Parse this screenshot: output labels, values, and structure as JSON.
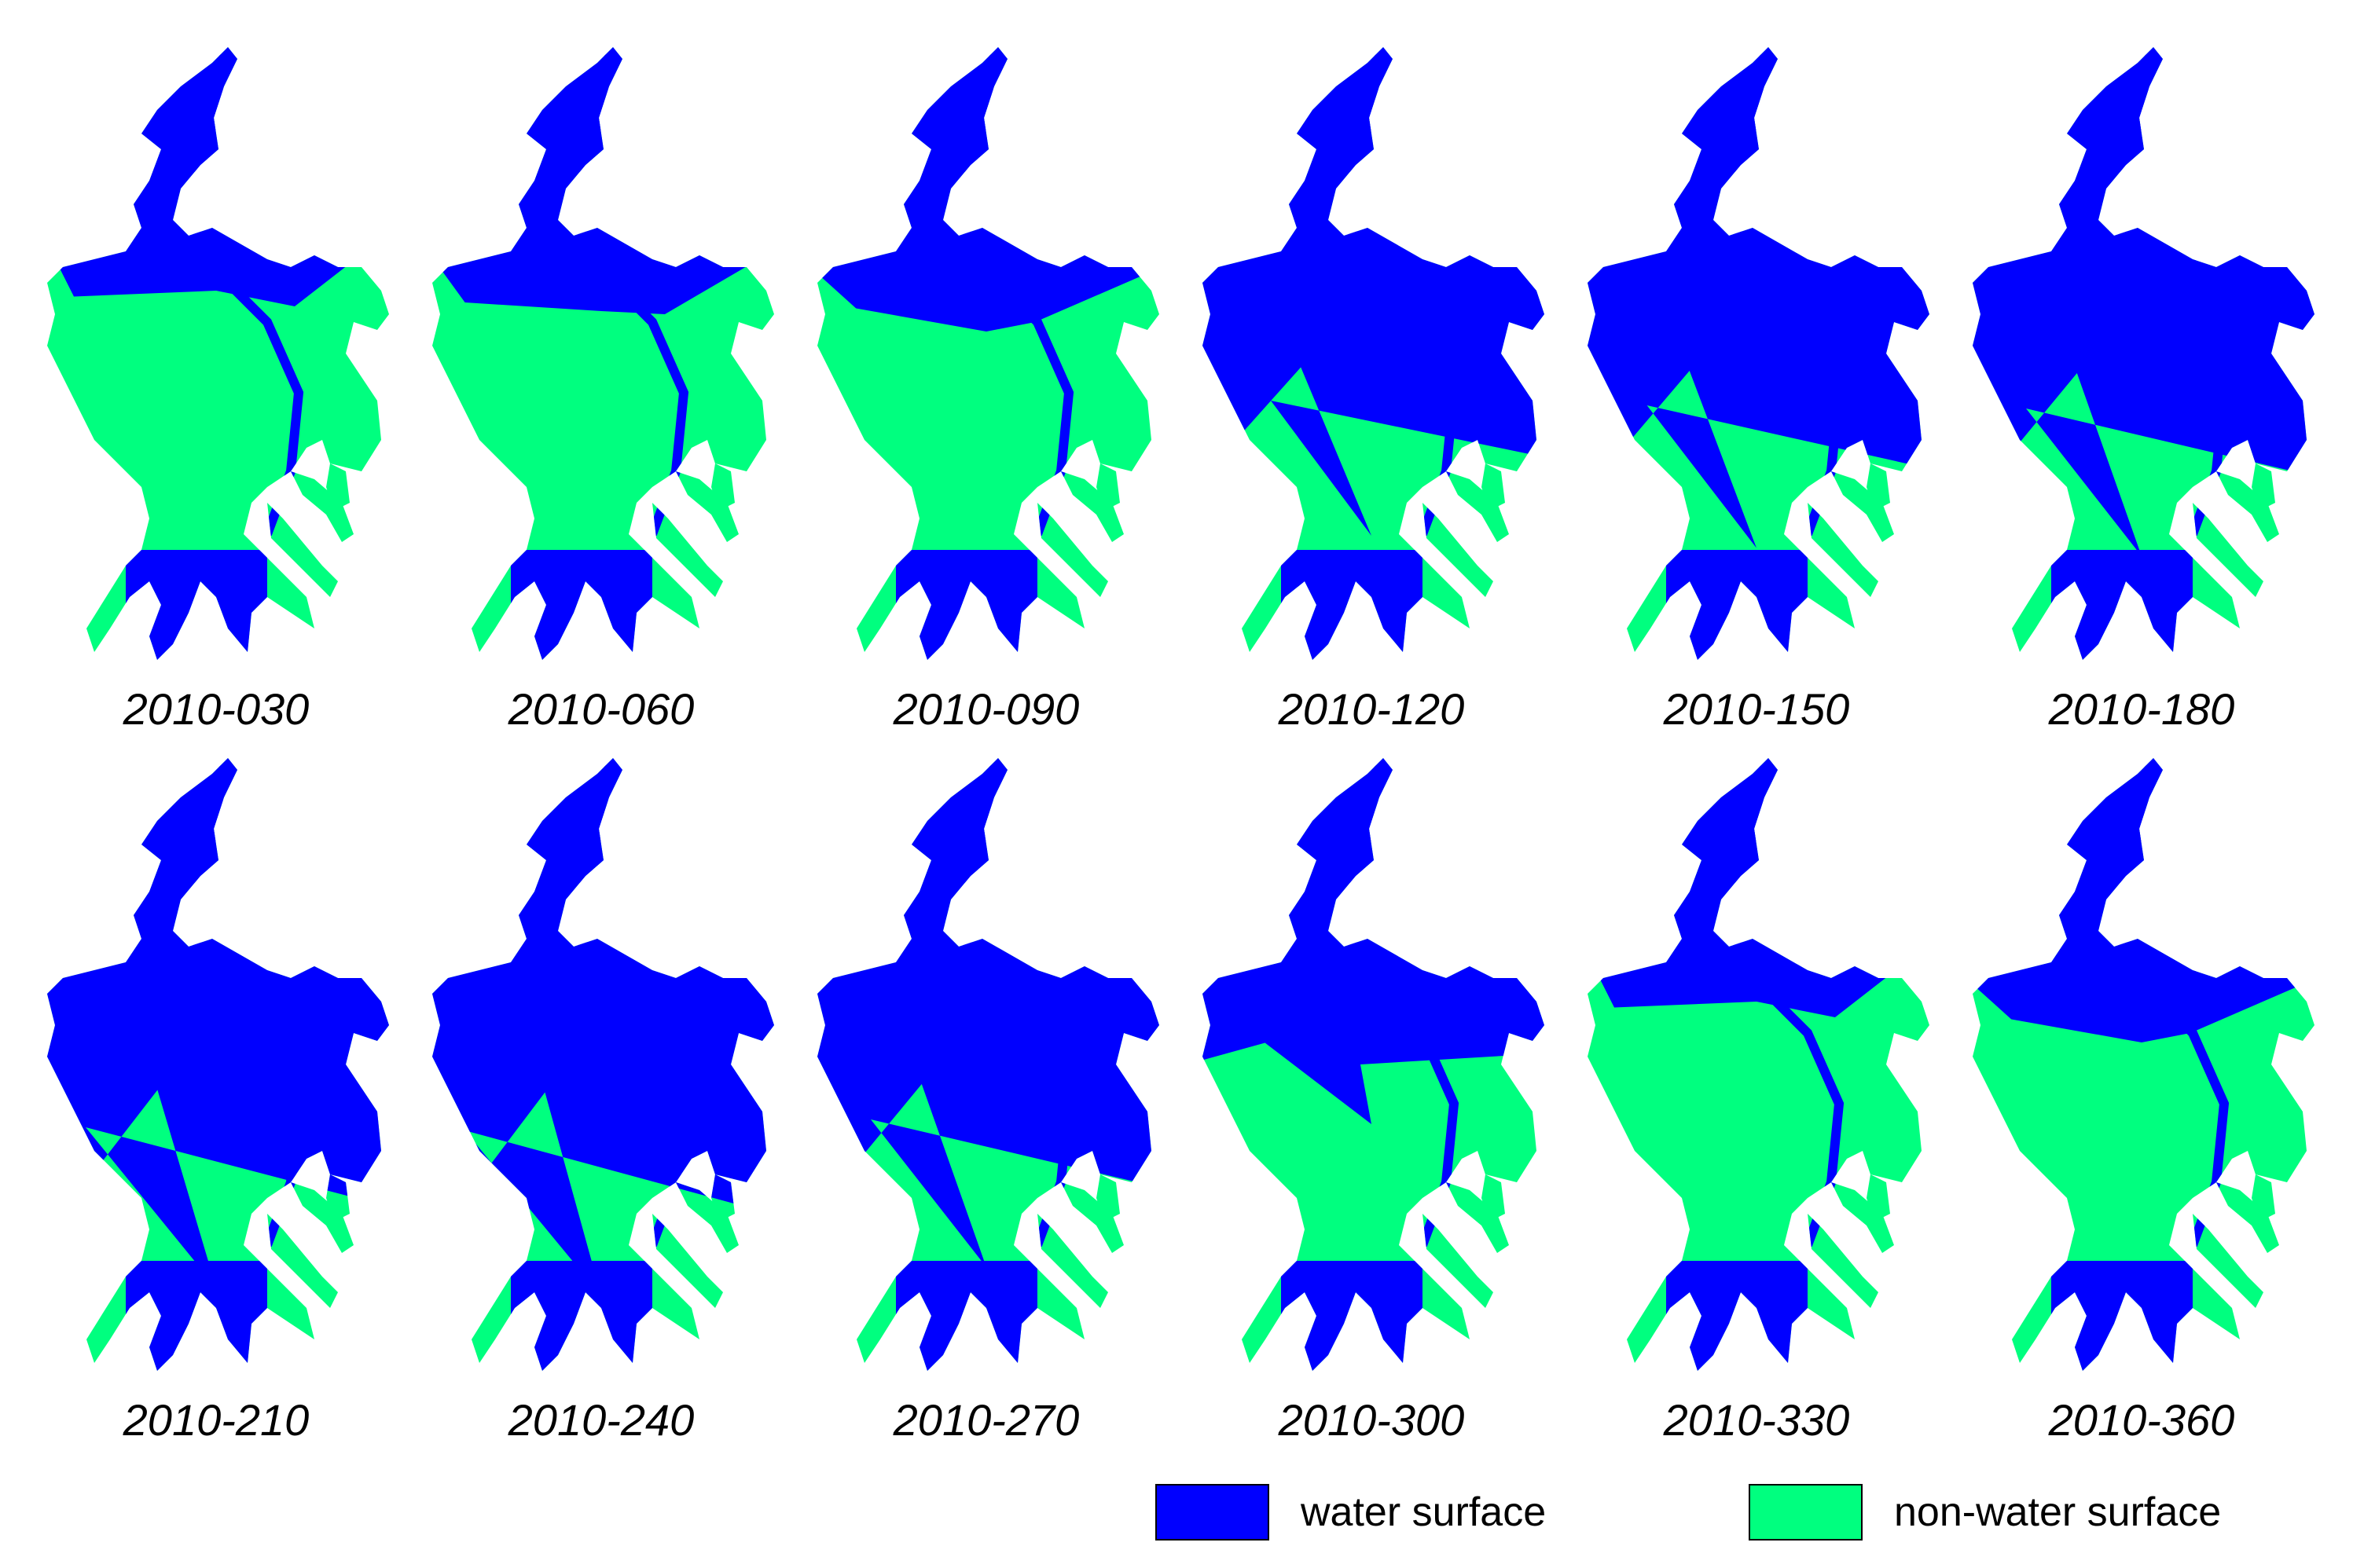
{
  "figure": {
    "panels": [
      {
        "label": "2010-030",
        "water_fraction": 0.25
      },
      {
        "label": "2010-060",
        "water_fraction": 0.3
      },
      {
        "label": "2010-090",
        "water_fraction": 0.35
      },
      {
        "label": "2010-120",
        "water_fraction": 0.85
      },
      {
        "label": "2010-150",
        "water_fraction": 0.88
      },
      {
        "label": "2010-180",
        "water_fraction": 0.9
      },
      {
        "label": "2010-210",
        "water_fraction": 0.95
      },
      {
        "label": "2010-240",
        "water_fraction": 0.97
      },
      {
        "label": "2010-270",
        "water_fraction": 0.9
      },
      {
        "label": "2010-300",
        "water_fraction": 0.55
      },
      {
        "label": "2010-330",
        "water_fraction": 0.25
      },
      {
        "label": "2010-360",
        "water_fraction": 0.35
      }
    ],
    "legend": [
      {
        "label": "water surface",
        "color": "#0000ff"
      },
      {
        "label": "non-water surface",
        "color": "#00ff7f"
      }
    ]
  }
}
